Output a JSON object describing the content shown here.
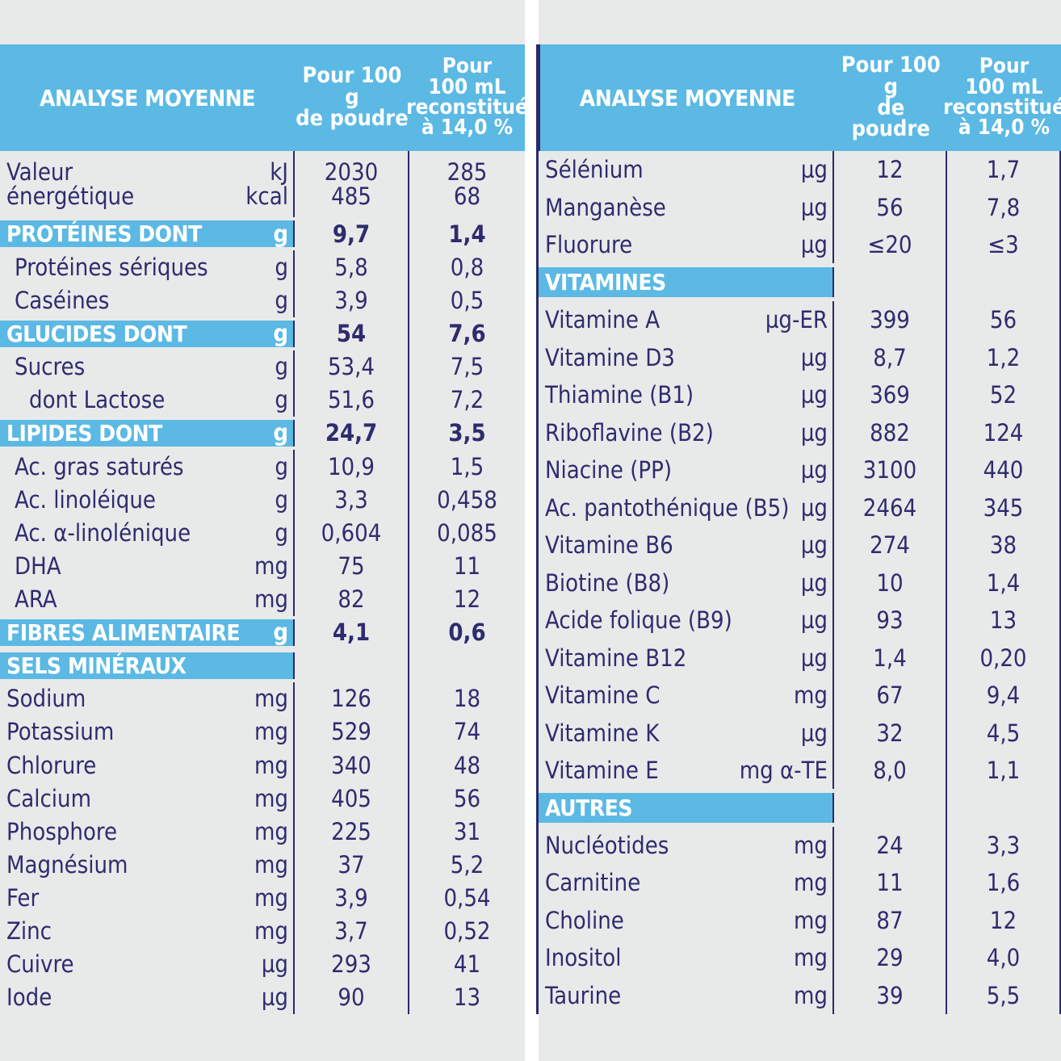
{
  "header": {
    "label": "ANALYSE MOYENNE",
    "col1": [
      "Pour 100 g",
      "de poudre"
    ],
    "col2": [
      "Pour",
      "100 mL",
      "reconstitué",
      "à 14,0 %"
    ]
  },
  "left_rows": [
    {
      "type": "energy",
      "name": [
        "Valeur",
        "énergétique"
      ],
      "unit": [
        "kJ",
        "kcal"
      ],
      "v1": [
        "2030",
        "485"
      ],
      "v2": [
        "285",
        "68"
      ]
    },
    {
      "type": "section",
      "name": "PROTÉINES DONT",
      "unit": "g",
      "v1": "9,7",
      "v2": "1,4"
    },
    {
      "type": "item",
      "indent": 1,
      "name": "Protéines sériques",
      "unit": "g",
      "v1": "5,8",
      "v2": "0,8"
    },
    {
      "type": "item",
      "indent": 1,
      "name": "Caséines",
      "unit": "g",
      "v1": "3,9",
      "v2": "0,5"
    },
    {
      "type": "section",
      "name": "GLUCIDES DONT",
      "unit": "g",
      "v1": "54",
      "v2": "7,6"
    },
    {
      "type": "item",
      "indent": 1,
      "name": "Sucres",
      "unit": "g",
      "v1": "53,4",
      "v2": "7,5"
    },
    {
      "type": "item",
      "indent": 2,
      "name": "dont Lactose",
      "unit": "g",
      "v1": "51,6",
      "v2": "7,2"
    },
    {
      "type": "section",
      "name": "LIPIDES DONT",
      "unit": "g",
      "v1": "24,7",
      "v2": "3,5"
    },
    {
      "type": "item",
      "indent": 1,
      "name": "Ac. gras saturés",
      "unit": "g",
      "v1": "10,9",
      "v2": "1,5"
    },
    {
      "type": "item",
      "indent": 1,
      "name": "Ac. linoléique",
      "unit": "g",
      "v1": "3,3",
      "v2": "0,458"
    },
    {
      "type": "item",
      "indent": 1,
      "name": "Ac. α-linolénique",
      "unit": "g",
      "v1": "0,604",
      "v2": "0,085"
    },
    {
      "type": "item",
      "indent": 1,
      "name": "DHA",
      "unit": "mg",
      "v1": "75",
      "v2": "11"
    },
    {
      "type": "item",
      "indent": 1,
      "name": "ARA",
      "unit": "mg",
      "v1": "82",
      "v2": "12"
    },
    {
      "type": "section",
      "name": "FIBRES ALIMENTAIRES",
      "unit": "g",
      "v1": "4,1",
      "v2": "0,6"
    },
    {
      "type": "section",
      "name": "SELS MINÉRAUX",
      "unit": "",
      "v1": "",
      "v2": ""
    },
    {
      "type": "item",
      "indent": 0,
      "name": "Sodium",
      "unit": "mg",
      "v1": "126",
      "v2": "18"
    },
    {
      "type": "item",
      "indent": 0,
      "name": "Potassium",
      "unit": "mg",
      "v1": "529",
      "v2": "74"
    },
    {
      "type": "item",
      "indent": 0,
      "name": "Chlorure",
      "unit": "mg",
      "v1": "340",
      "v2": "48"
    },
    {
      "type": "item",
      "indent": 0,
      "name": "Calcium",
      "unit": "mg",
      "v1": "405",
      "v2": "56"
    },
    {
      "type": "item",
      "indent": 0,
      "name": "Phosphore",
      "unit": "mg",
      "v1": "225",
      "v2": "31"
    },
    {
      "type": "item",
      "indent": 0,
      "name": "Magnésium",
      "unit": "mg",
      "v1": "37",
      "v2": "5,2"
    },
    {
      "type": "item",
      "indent": 0,
      "name": "Fer",
      "unit": "mg",
      "v1": "3,9",
      "v2": "0,54"
    },
    {
      "type": "item",
      "indent": 0,
      "name": "Zinc",
      "unit": "mg",
      "v1": "3,7",
      "v2": "0,52"
    },
    {
      "type": "item",
      "indent": 0,
      "name": "Cuivre",
      "unit": "µg",
      "v1": "293",
      "v2": "41"
    },
    {
      "type": "item",
      "indent": 0,
      "name": "Iode",
      "unit": "µg",
      "v1": "90",
      "v2": "13"
    }
  ],
  "right_rows": [
    {
      "type": "item",
      "name": "Sélénium",
      "unit": "µg",
      "v1": "12",
      "v2": "1,7"
    },
    {
      "type": "item",
      "name": "Manganèse",
      "unit": "µg",
      "v1": "56",
      "v2": "7,8"
    },
    {
      "type": "item",
      "name": "Fluorure",
      "unit": "µg",
      "v1": "≤20",
      "v2": "≤3"
    },
    {
      "type": "section",
      "name": "VITAMINES",
      "unit": "",
      "v1": "",
      "v2": ""
    },
    {
      "type": "item",
      "name": "Vitamine A",
      "unit": "µg-ER",
      "v1": "399",
      "v2": "56"
    },
    {
      "type": "item",
      "name": "Vitamine D3",
      "unit": "µg",
      "v1": "8,7",
      "v2": "1,2"
    },
    {
      "type": "item",
      "name": "Thiamine (B1)",
      "unit": "µg",
      "v1": "369",
      "v2": "52"
    },
    {
      "type": "item",
      "name": "Riboflavine (B2)",
      "unit": "µg",
      "v1": "882",
      "v2": "124"
    },
    {
      "type": "item",
      "name": "Niacine (PP)",
      "unit": "µg",
      "v1": "3100",
      "v2": "440"
    },
    {
      "type": "item",
      "name": "Ac. pantothénique (B5)",
      "unit": "µg",
      "v1": "2464",
      "v2": "345"
    },
    {
      "type": "item",
      "name": "Vitamine B6",
      "unit": "µg",
      "v1": "274",
      "v2": "38"
    },
    {
      "type": "item",
      "name": "Biotine (B8)",
      "unit": "µg",
      "v1": "10",
      "v2": "1,4"
    },
    {
      "type": "item",
      "name": "Acide folique (B9)",
      "unit": "µg",
      "v1": "93",
      "v2": "13"
    },
    {
      "type": "item",
      "name": "Vitamine B12",
      "unit": "µg",
      "v1": "1,4",
      "v2": "0,20"
    },
    {
      "type": "item",
      "name": "Vitamine C",
      "unit": "mg",
      "v1": "67",
      "v2": "9,4"
    },
    {
      "type": "item",
      "name": "Vitamine K",
      "unit": "µg",
      "v1": "32",
      "v2": "4,5"
    },
    {
      "type": "item",
      "name": "Vitamine E",
      "unit": "mg α-TE",
      "v1": "8,0",
      "v2": "1,1"
    },
    {
      "type": "section",
      "name": "AUTRES",
      "unit": "",
      "v1": "",
      "v2": ""
    },
    {
      "type": "item",
      "name": "Nucléotides",
      "unit": "mg",
      "v1": "24",
      "v2": "3,3"
    },
    {
      "type": "item",
      "name": "Carnitine",
      "unit": "mg",
      "v1": "11",
      "v2": "1,6"
    },
    {
      "type": "item",
      "name": "Choline",
      "unit": "mg",
      "v1": "87",
      "v2": "12"
    },
    {
      "type": "item",
      "name": "Inositol",
      "unit": "mg",
      "v1": "29",
      "v2": "4,0"
    },
    {
      "type": "item",
      "name": "Taurine",
      "unit": "mg",
      "v1": "39",
      "v2": "5,5"
    }
  ]
}
